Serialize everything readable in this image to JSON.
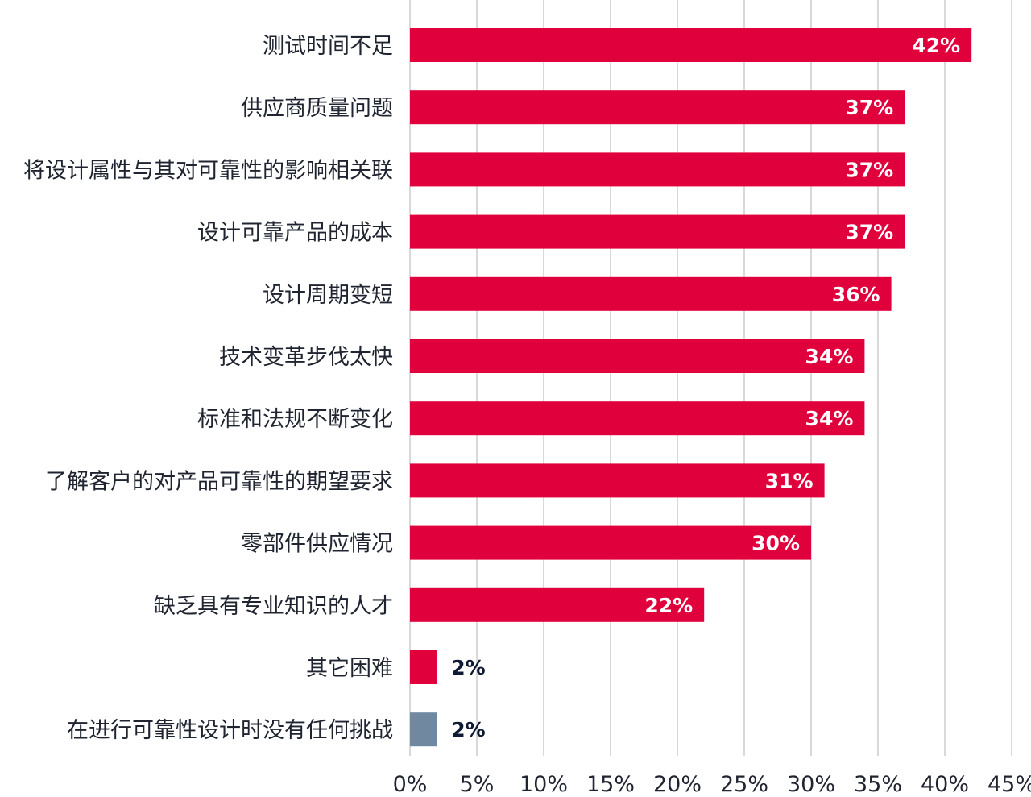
{
  "chart_data": {
    "type": "bar",
    "orientation": "horizontal",
    "categories": [
      "测试时间不足",
      "供应商质量问题",
      "将设计属性与其对可靠性的影响相关联",
      "设计可靠产品的成本",
      "设计周期变短",
      "技术变革步伐太快",
      "标准和法规不断变化",
      "了解客户的对产品可靠性的期望要求",
      "零部件供应情况",
      "缺乏具有专业知识的人才",
      "其它困难",
      "在进行可靠性设计时没有任何挑战"
    ],
    "values": [
      42,
      37,
      37,
      37,
      36,
      34,
      34,
      31,
      30,
      22,
      2,
      2
    ],
    "value_labels": [
      "42%",
      "37%",
      "37%",
      "37%",
      "36%",
      "34%",
      "34%",
      "31%",
      "30%",
      "22%",
      "2%",
      "2%"
    ],
    "bar_colors": [
      "#e0003c",
      "#e0003c",
      "#e0003c",
      "#e0003c",
      "#e0003c",
      "#e0003c",
      "#e0003c",
      "#e0003c",
      "#e0003c",
      "#e0003c",
      "#e0003c",
      "#7089a1"
    ],
    "xlim": [
      0,
      45
    ],
    "xticks": [
      "0%",
      "5%",
      "10%",
      "15%",
      "20%",
      "25%",
      "30%",
      "35%",
      "40%",
      "45%"
    ],
    "grid": "vertical",
    "colors": {
      "primary": "#e0003c",
      "neutral": "#7089a1",
      "grid": "#d9d9d9"
    }
  }
}
